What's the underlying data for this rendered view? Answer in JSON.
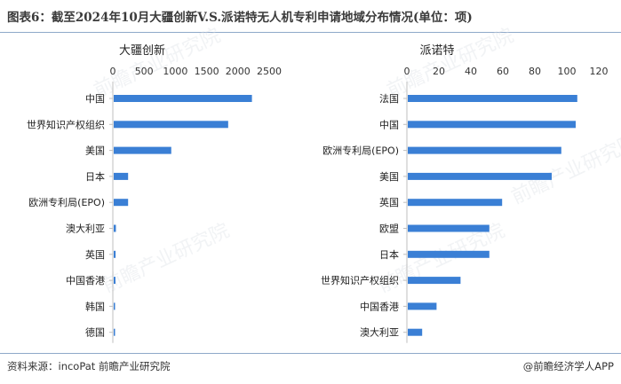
{
  "title": "图表6：截至2024年10月大疆创新V.S.派诺特无人机专利申请地域分布情况(单位：项)",
  "source": "资料来源：incoPat 前瞻产业研究院",
  "credit": "@前瞻经济学人APP",
  "watermark": "前瞻产业研究院",
  "colors": {
    "bar": "#3a7fd5",
    "rule": "#8fa9c9"
  },
  "chart_data": [
    {
      "type": "bar",
      "orientation": "horizontal",
      "title": "大疆创新",
      "categories": [
        "中国",
        "世界知识产权组织",
        "美国",
        "日本",
        "欧洲专利局(EPO)",
        "澳大利亚",
        "英国",
        "中国香港",
        "韩国",
        "德国"
      ],
      "values": [
        2210,
        1830,
        920,
        230,
        230,
        35,
        30,
        28,
        15,
        12
      ],
      "xlim": [
        0,
        2500
      ],
      "xticks": [
        0,
        500,
        1000,
        1500,
        2000,
        2500
      ]
    },
    {
      "type": "bar",
      "orientation": "horizontal",
      "title": "派诺特",
      "categories": [
        "法国",
        "中国",
        "欧洲专利局(EPO)",
        "美国",
        "英国",
        "欧盟",
        "日本",
        "世界知识产权组织",
        "中国香港",
        "澳大利亚"
      ],
      "values": [
        106,
        105,
        96,
        90,
        59,
        51,
        51,
        33,
        18,
        9
      ],
      "xlim": [
        0,
        120
      ],
      "xticks": [
        0,
        20,
        40,
        60,
        80,
        100,
        120
      ]
    }
  ]
}
